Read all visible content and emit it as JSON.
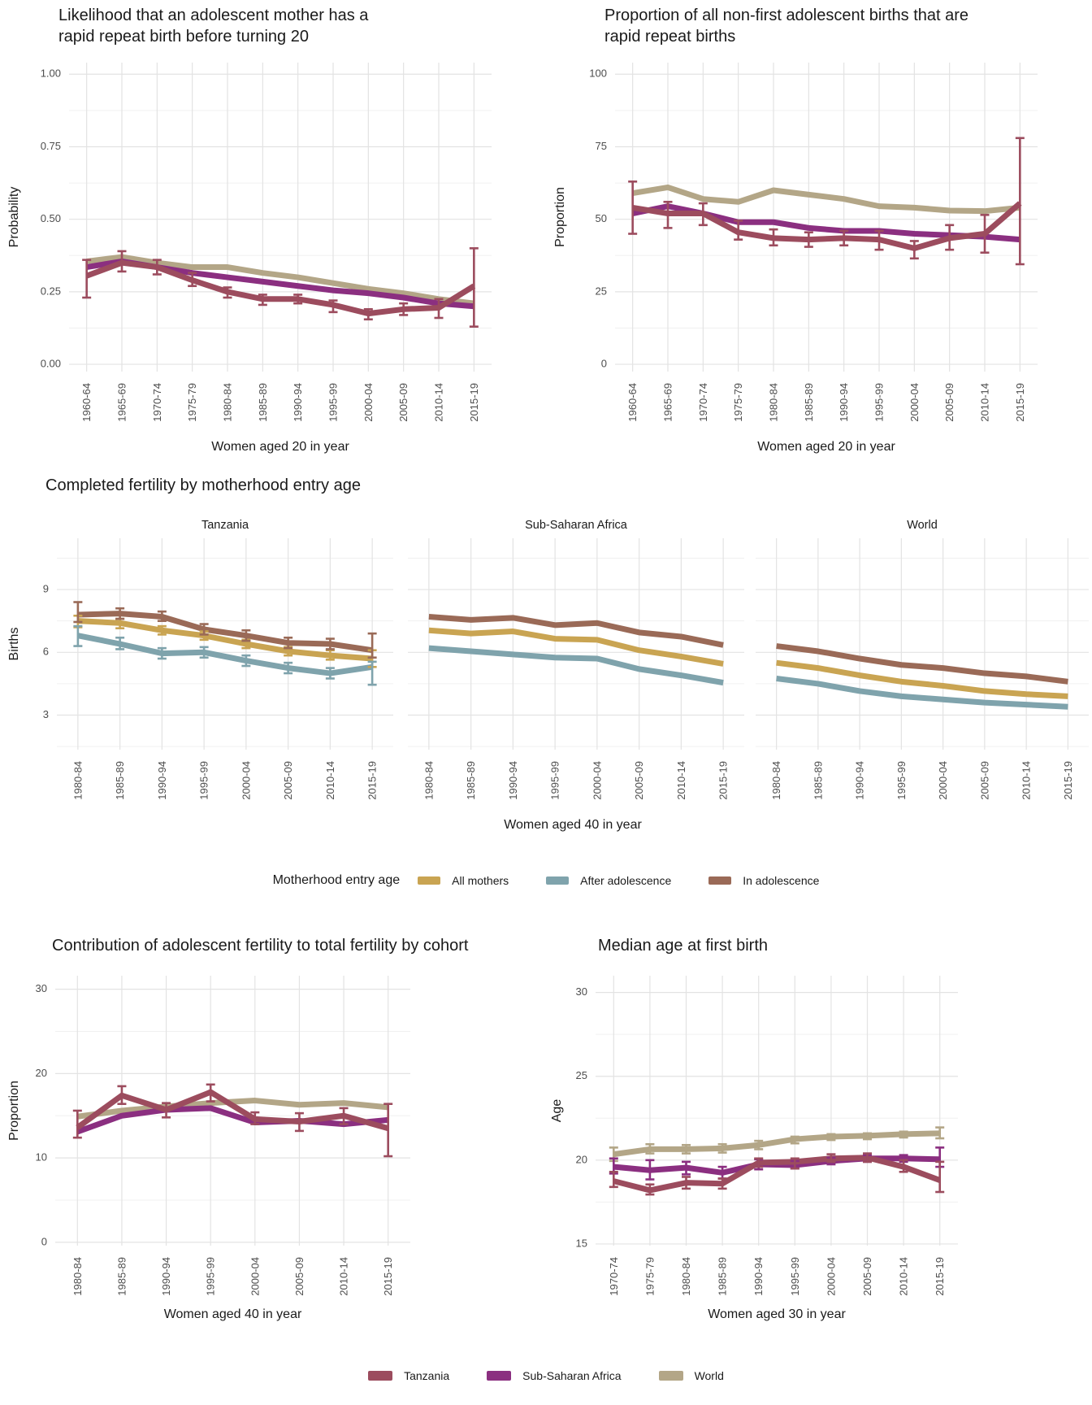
{
  "colors": {
    "tanzania": "#9c4c5e",
    "sub_saharan_africa": "#8b2f80",
    "world": "#b3a687",
    "all_mothers": "#c9a452",
    "after_adolescence": "#7fa3ac",
    "in_adolescence": "#9a6a57",
    "grid_major": "#e3e3e3",
    "grid_minor": "#f0f0f0",
    "axis_text": "#4d4d4d"
  },
  "legend_entry_age": {
    "title": "Motherhood entry age",
    "items": [
      {
        "label": "All mothers"
      },
      {
        "label": "After adolescence"
      },
      {
        "label": "In adolescence"
      }
    ]
  },
  "legend_regions": {
    "items": [
      {
        "label": "Tanzania"
      },
      {
        "label": "Sub-Saharan Africa"
      },
      {
        "label": "World"
      }
    ]
  },
  "chart_data": [
    {
      "id": "rrb-likelihood",
      "type": "line",
      "title": "Likelihood that an adolescent mother has a\nrapid repeat birth before turning 20",
      "xlabel": "Women aged 20 in year",
      "ylabel": "Probability",
      "grid": true,
      "ylim": [
        -0.025,
        1.04
      ],
      "yticks": [
        0,
        0.25,
        0.5,
        0.75,
        1
      ],
      "ytick_labels": [
        "0.00",
        "0.25",
        "0.50",
        "0.75",
        "1.00"
      ],
      "categories": [
        "1960-64",
        "1965-69",
        "1970-74",
        "1975-79",
        "1980-84",
        "1985-89",
        "1990-94",
        "1995-99",
        "2000-04",
        "2005-09",
        "2010-14",
        "2015-19"
      ],
      "series": [
        {
          "name": "World",
          "color": "#b3a687",
          "values": [
            0.355,
            0.37,
            0.35,
            0.335,
            0.335,
            0.315,
            0.3,
            0.28,
            0.26,
            0.245,
            0.225,
            0.21
          ]
        },
        {
          "name": "Sub-Saharan Africa",
          "color": "#8b2f80",
          "values": [
            0.335,
            0.355,
            0.335,
            0.315,
            0.3,
            0.285,
            0.27,
            0.255,
            0.245,
            0.23,
            0.21,
            0.2
          ]
        },
        {
          "name": "Tanzania",
          "color": "#9c4c5e",
          "values": [
            0.305,
            0.35,
            0.335,
            0.29,
            0.25,
            0.225,
            0.225,
            0.205,
            0.175,
            0.19,
            0.195,
            0.27
          ],
          "errors": [
            [
              0.23,
              0.36
            ],
            [
              0.32,
              0.39
            ],
            [
              0.31,
              0.36
            ],
            [
              0.27,
              0.315
            ],
            [
              0.23,
              0.265
            ],
            [
              0.205,
              0.24
            ],
            [
              0.21,
              0.24
            ],
            [
              0.18,
              0.22
            ],
            [
              0.155,
              0.19
            ],
            [
              0.17,
              0.21
            ],
            [
              0.16,
              0.225
            ],
            [
              0.13,
              0.4
            ]
          ]
        }
      ]
    },
    {
      "id": "rrb-proportion",
      "type": "line",
      "title": "Proportion of all non-first adolescent births that are\nrapid repeat births",
      "xlabel": "Women aged 20 in year",
      "ylabel": "Proportion",
      "grid": true,
      "ylim": [
        -2.5,
        104
      ],
      "yticks": [
        0,
        25,
        50,
        75,
        100
      ],
      "ytick_labels": [
        "0",
        "25",
        "50",
        "75",
        "100"
      ],
      "categories": [
        "1960-64",
        "1965-69",
        "1970-74",
        "1975-79",
        "1980-84",
        "1985-89",
        "1990-94",
        "1995-99",
        "2000-04",
        "2005-09",
        "2010-14",
        "2015-19"
      ],
      "series": [
        {
          "name": "World",
          "color": "#b3a687",
          "values": [
            59,
            61,
            57,
            56,
            60,
            58.5,
            57,
            54.5,
            54,
            53,
            52.8,
            54
          ]
        },
        {
          "name": "Sub-Saharan Africa",
          "color": "#8b2f80",
          "values": [
            52,
            54.5,
            52,
            49,
            49,
            47,
            46,
            46,
            45,
            44.5,
            44,
            43
          ]
        },
        {
          "name": "Tanzania",
          "color": "#9c4c5e",
          "values": [
            54,
            52,
            52,
            45.5,
            43.5,
            43,
            43.5,
            43,
            40,
            43.5,
            45,
            55.5
          ],
          "errors": [
            [
              45,
              63
            ],
            [
              47,
              56
            ],
            [
              48,
              55.5
            ],
            [
              43,
              49.5
            ],
            [
              41,
              46.5
            ],
            [
              40.5,
              45.5
            ],
            [
              41,
              46
            ],
            [
              39.5,
              46
            ],
            [
              36.5,
              42.5
            ],
            [
              39.5,
              48
            ],
            [
              38.5,
              51.5
            ],
            [
              34.5,
              78
            ]
          ]
        }
      ]
    },
    {
      "id": "completed-fertility",
      "type": "line-faceted",
      "title": "Completed fertility by motherhood entry age",
      "xlabel": "Women aged 40 in year",
      "ylabel": "Births",
      "grid": true,
      "legend_position": "bottom",
      "ylim": [
        1.35,
        11.45
      ],
      "yticks": [
        3,
        6,
        9
      ],
      "ytick_labels": [
        "3",
        "6",
        "9"
      ],
      "categories": [
        "1980-84",
        "1985-89",
        "1990-94",
        "1995-99",
        "2000-04",
        "2005-09",
        "2010-14",
        "2015-19"
      ],
      "facets": [
        {
          "label": "Tanzania",
          "series": [
            {
              "name": "All mothers",
              "color": "#c9a452",
              "values": [
                7.5,
                7.4,
                7.05,
                6.8,
                6.4,
                6.05,
                5.85,
                5.7
              ],
              "errors": [
                [
                  7.2,
                  7.75
                ],
                [
                  7.15,
                  7.6
                ],
                [
                  6.85,
                  7.25
                ],
                [
                  6.6,
                  7.0
                ],
                [
                  6.2,
                  6.6
                ],
                [
                  5.85,
                  6.25
                ],
                [
                  5.65,
                  6.1
                ],
                [
                  5.3,
                  6.1
                ]
              ]
            },
            {
              "name": "After adolescence",
              "color": "#7fa3ac",
              "values": [
                6.8,
                6.4,
                5.95,
                6.0,
                5.6,
                5.25,
                5.0,
                5.3
              ],
              "errors": [
                [
                  6.3,
                  7.25
                ],
                [
                  6.15,
                  6.7
                ],
                [
                  5.7,
                  6.2
                ],
                [
                  5.75,
                  6.25
                ],
                [
                  5.35,
                  5.85
                ],
                [
                  5.0,
                  5.5
                ],
                [
                  4.75,
                  5.25
                ],
                [
                  4.45,
                  5.55
                ]
              ]
            },
            {
              "name": "In adolescence",
              "color": "#9a6a57",
              "values": [
                7.8,
                7.85,
                7.7,
                7.1,
                6.8,
                6.45,
                6.4,
                6.1
              ],
              "errors": [
                [
                  7.45,
                  8.4
                ],
                [
                  7.6,
                  8.1
                ],
                [
                  7.5,
                  7.95
                ],
                [
                  6.85,
                  7.35
                ],
                [
                  6.55,
                  7.05
                ],
                [
                  6.2,
                  6.7
                ],
                [
                  6.15,
                  6.65
                ],
                [
                  5.75,
                  6.9
                ]
              ]
            }
          ]
        },
        {
          "label": "Sub-Saharan Africa",
          "series": [
            {
              "name": "All mothers",
              "color": "#c9a452",
              "values": [
                7.05,
                6.9,
                7.0,
                6.65,
                6.6,
                6.1,
                5.8,
                5.45
              ]
            },
            {
              "name": "After adolescence",
              "color": "#7fa3ac",
              "values": [
                6.2,
                6.05,
                5.9,
                5.75,
                5.7,
                5.2,
                4.9,
                4.55
              ]
            },
            {
              "name": "In adolescence",
              "color": "#9a6a57",
              "values": [
                7.7,
                7.55,
                7.65,
                7.3,
                7.4,
                6.95,
                6.75,
                6.35
              ]
            }
          ]
        },
        {
          "label": "World",
          "series": [
            {
              "name": "All mothers",
              "color": "#c9a452",
              "values": [
                5.5,
                5.25,
                4.9,
                4.6,
                4.4,
                4.15,
                4.0,
                3.9
              ]
            },
            {
              "name": "After adolescence",
              "color": "#7fa3ac",
              "values": [
                4.75,
                4.5,
                4.15,
                3.9,
                3.75,
                3.6,
                3.5,
                3.4
              ]
            },
            {
              "name": "In adolescence",
              "color": "#9a6a57",
              "values": [
                6.3,
                6.05,
                5.7,
                5.4,
                5.25,
                5.0,
                4.85,
                4.6
              ]
            }
          ]
        }
      ]
    },
    {
      "id": "adolescent-contribution",
      "type": "line",
      "title": "Contribution of adolescent fertility to total fertility by cohort",
      "xlabel": "Women aged 40 in year",
      "ylabel": "Proportion",
      "grid": true,
      "ylim": [
        -0.4,
        31.6
      ],
      "yticks": [
        0,
        10,
        20,
        30
      ],
      "ytick_labels": [
        "0",
        "10",
        "20",
        "30"
      ],
      "categories": [
        "1980-84",
        "1985-89",
        "1990-94",
        "1995-99",
        "2000-04",
        "2005-09",
        "2010-14",
        "2015-19"
      ],
      "series": [
        {
          "name": "World",
          "color": "#b3a687",
          "values": [
            14.9,
            15.6,
            16.1,
            16.5,
            16.8,
            16.3,
            16.5,
            16.0
          ]
        },
        {
          "name": "Sub-Saharan Africa",
          "color": "#8b2f80",
          "values": [
            13.1,
            15.0,
            15.7,
            15.9,
            14.2,
            14.4,
            14.0,
            14.5
          ]
        },
        {
          "name": "Tanzania",
          "color": "#9c4c5e",
          "values": [
            13.6,
            17.4,
            15.7,
            17.8,
            14.6,
            14.3,
            15.0,
            13.5
          ],
          "errors": [
            [
              12.4,
              15.6
            ],
            [
              16.4,
              18.5
            ],
            [
              14.8,
              16.5
            ],
            [
              16.7,
              18.7
            ],
            [
              14.0,
              15.4
            ],
            [
              13.2,
              15.3
            ],
            [
              14.0,
              15.9
            ],
            [
              10.2,
              16.4
            ]
          ]
        }
      ]
    },
    {
      "id": "median-age-first-birth",
      "type": "line",
      "title": "Median age at first birth",
      "xlabel": "Women aged 30 in year",
      "ylabel": "Age",
      "grid": true,
      "ylim": [
        14.9,
        31.0
      ],
      "yticks": [
        15,
        20,
        25,
        30
      ],
      "ytick_labels": [
        "15",
        "20",
        "25",
        "30"
      ],
      "categories": [
        "1970-74",
        "1975-79",
        "1980-84",
        "1985-89",
        "1990-94",
        "1995-99",
        "2000-04",
        "2005-09",
        "2010-14",
        "2015-19"
      ],
      "series": [
        {
          "name": "World",
          "color": "#b3a687",
          "values": [
            20.35,
            20.65,
            20.65,
            20.7,
            20.9,
            21.25,
            21.4,
            21.45,
            21.55,
            21.6
          ],
          "errors": [
            [
              19.95,
              20.75
            ],
            [
              20.4,
              20.95
            ],
            [
              20.4,
              20.9
            ],
            [
              20.45,
              20.95
            ],
            [
              20.65,
              21.15
            ],
            [
              21.0,
              21.4
            ],
            [
              21.2,
              21.55
            ],
            [
              21.25,
              21.6
            ],
            [
              21.35,
              21.7
            ],
            [
              21.3,
              21.95
            ]
          ]
        },
        {
          "name": "Sub-Saharan Africa",
          "color": "#8b2f80",
          "values": [
            19.6,
            19.4,
            19.55,
            19.25,
            19.75,
            19.7,
            19.95,
            20.1,
            20.1,
            20.05
          ],
          "errors": [
            [
              19.2,
              20.1
            ],
            [
              18.85,
              20.0
            ],
            [
              19.15,
              19.9
            ],
            [
              18.9,
              19.6
            ],
            [
              19.45,
              20.05
            ],
            [
              19.5,
              19.95
            ],
            [
              19.75,
              20.15
            ],
            [
              19.9,
              20.3
            ],
            [
              19.9,
              20.3
            ],
            [
              19.6,
              20.75
            ]
          ]
        },
        {
          "name": "Tanzania",
          "color": "#9c4c5e",
          "values": [
            18.75,
            18.2,
            18.65,
            18.6,
            19.85,
            19.9,
            20.1,
            20.15,
            19.6,
            18.8
          ],
          "errors": [
            [
              18.4,
              19.3
            ],
            [
              17.95,
              18.55
            ],
            [
              18.3,
              19.0
            ],
            [
              18.3,
              18.9
            ],
            [
              19.6,
              20.1
            ],
            [
              19.5,
              20.1
            ],
            [
              19.9,
              20.35
            ],
            [
              19.9,
              20.4
            ],
            [
              19.3,
              20.0
            ],
            [
              18.1,
              19.9
            ]
          ]
        }
      ]
    }
  ]
}
